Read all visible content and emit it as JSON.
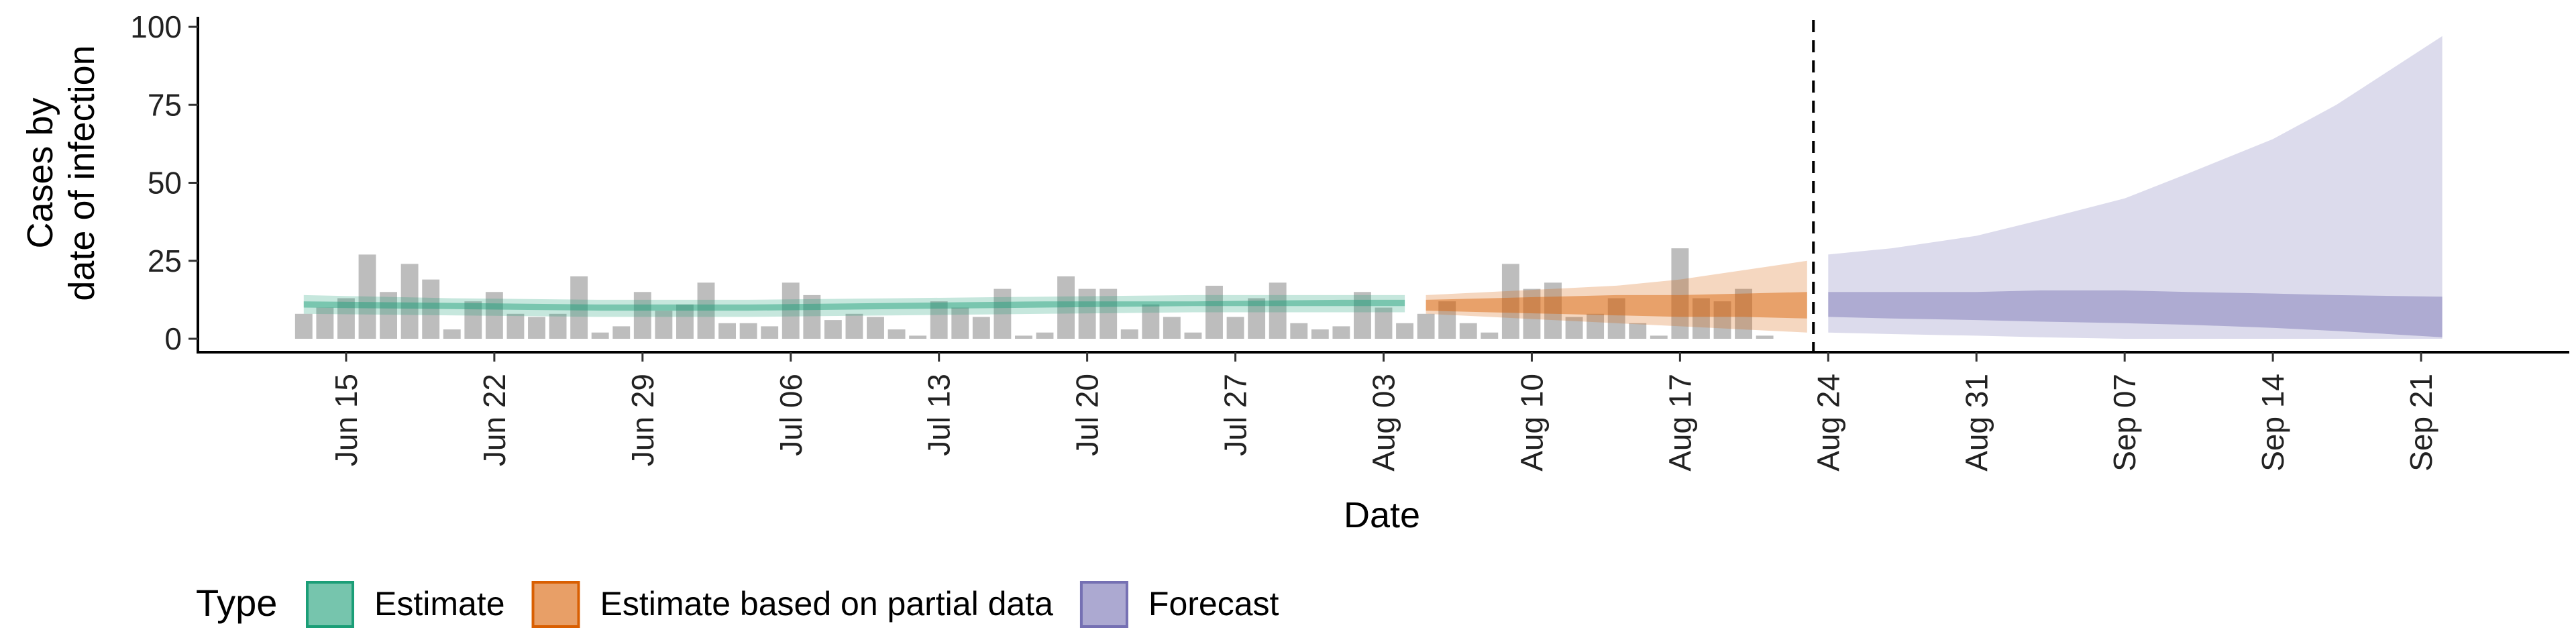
{
  "chart_data": {
    "type": "bar",
    "xlabel": "Date",
    "ylabel_lines": [
      "Cases by",
      "date of infection"
    ],
    "ylim": [
      0,
      100
    ],
    "yticks": [
      0,
      25,
      50,
      75,
      100
    ],
    "xlim": [
      "2020-06-08",
      "2020-09-28"
    ],
    "xticks": [
      {
        "date": "2020-06-15",
        "label": "Jun 15"
      },
      {
        "date": "2020-06-22",
        "label": "Jun 22"
      },
      {
        "date": "2020-06-29",
        "label": "Jun 29"
      },
      {
        "date": "2020-07-06",
        "label": "Jul 06"
      },
      {
        "date": "2020-07-13",
        "label": "Jul 13"
      },
      {
        "date": "2020-07-20",
        "label": "Jul 20"
      },
      {
        "date": "2020-07-27",
        "label": "Jul 27"
      },
      {
        "date": "2020-08-03",
        "label": "Aug 03"
      },
      {
        "date": "2020-08-10",
        "label": "Aug 10"
      },
      {
        "date": "2020-08-17",
        "label": "Aug 17"
      },
      {
        "date": "2020-08-24",
        "label": "Aug 24"
      },
      {
        "date": "2020-08-31",
        "label": "Aug 31"
      },
      {
        "date": "2020-09-07",
        "label": "Sep 07"
      },
      {
        "date": "2020-09-14",
        "label": "Sep 14"
      },
      {
        "date": "2020-09-21",
        "label": "Sep 21"
      }
    ],
    "observed_cases": {
      "start_date": "2020-06-13",
      "values": [
        8,
        10,
        13,
        27,
        15,
        24,
        19,
        3,
        12,
        15,
        8,
        7,
        8,
        20,
        2,
        4,
        15,
        9,
        11,
        18,
        5,
        5,
        4,
        18,
        14,
        6,
        8,
        7,
        3,
        1,
        12,
        10,
        7,
        16,
        1,
        2,
        20,
        16,
        16,
        3,
        11,
        7,
        2,
        17,
        7,
        13,
        18,
        5,
        3,
        4,
        15,
        10,
        5,
        8,
        12,
        5,
        2,
        24,
        16,
        18,
        7,
        8,
        13,
        5,
        1,
        29,
        13,
        12,
        16,
        1
      ],
      "color": "#bdbdbd"
    },
    "forecast_date": "2020-08-23",
    "legend_title": "Type",
    "series": [
      {
        "name": "Estimate",
        "color": "#1b9e77",
        "dates": [
          "2020-06-13",
          "2020-06-20",
          "2020-06-27",
          "2020-07-04",
          "2020-07-11",
          "2020-07-18",
          "2020-07-25",
          "2020-08-01",
          "2020-08-04"
        ],
        "outer_lower": [
          8,
          7.5,
          7,
          7,
          7.5,
          8,
          8.5,
          8.5,
          8.5
        ],
        "outer_upper": [
          14,
          13,
          12.5,
          12.5,
          13,
          13.5,
          14,
          14,
          14
        ],
        "inner_lower": [
          10,
          9.5,
          9,
          9,
          9.5,
          10,
          10.5,
          10.5,
          10.5
        ],
        "inner_upper": [
          12,
          11.5,
          11,
          11,
          11.5,
          12,
          12,
          12.5,
          12.5
        ]
      },
      {
        "name": "Estimate based on partial data",
        "color": "#d95f02",
        "dates": [
          "2020-08-05",
          "2020-08-08",
          "2020-08-11",
          "2020-08-14",
          "2020-08-17",
          "2020-08-20",
          "2020-08-23"
        ],
        "outer_lower": [
          8,
          7,
          6,
          5,
          4,
          3,
          2
        ],
        "outer_upper": [
          14,
          15,
          16,
          17,
          19,
          22,
          25
        ],
        "inner_lower": [
          9,
          8.5,
          8,
          7.5,
          7,
          7,
          6.5
        ],
        "inner_upper": [
          12.5,
          13,
          13.5,
          14,
          14,
          14.5,
          15
        ]
      },
      {
        "name": "Forecast",
        "color": "#7570b3",
        "dates": [
          "2020-08-24",
          "2020-08-27",
          "2020-08-31",
          "2020-09-03",
          "2020-09-07",
          "2020-09-10",
          "2020-09-14",
          "2020-09-17",
          "2020-09-22"
        ],
        "outer_lower": [
          2,
          1.5,
          1,
          0.5,
          0,
          0,
          0,
          0,
          0
        ],
        "outer_upper": [
          27,
          29,
          33,
          38,
          45,
          53,
          64,
          75,
          97
        ],
        "inner_lower": [
          7,
          6.5,
          6,
          5.5,
          5,
          4.5,
          3.5,
          2.5,
          0.5
        ],
        "inner_upper": [
          15,
          15,
          15,
          15.5,
          15.5,
          15,
          14.5,
          14,
          13.5
        ]
      }
    ],
    "grid": false,
    "legend_position": "bottom"
  }
}
